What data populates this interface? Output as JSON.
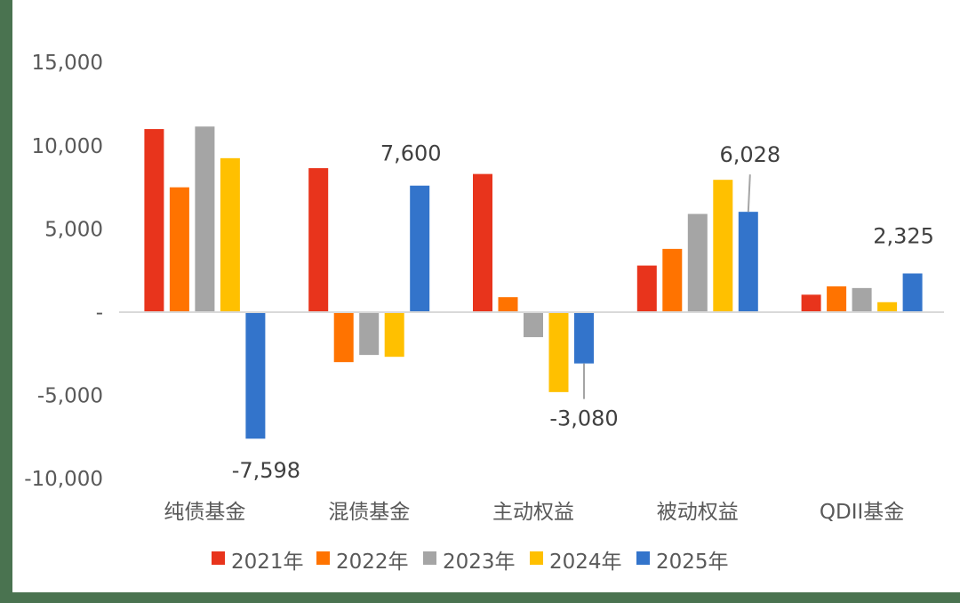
{
  "chart_data": {
    "type": "bar",
    "title": "",
    "xlabel": "",
    "ylabel": "",
    "ylim": [
      -10000,
      15000
    ],
    "yticks": [
      15000,
      10000,
      5000,
      0,
      -5000,
      -10000
    ],
    "ytick_labels": [
      "15,000",
      "10,000",
      "5,000",
      "-",
      "-5,000",
      "-10,000"
    ],
    "grid": false,
    "legend_position": "bottom",
    "categories": [
      "纯债基金",
      "混债基金",
      "主动权益",
      "被动权益",
      "QDII基金"
    ],
    "series": [
      {
        "name": "2021年",
        "color": "#e8341c",
        "values": [
          11000,
          8650,
          8300,
          2800,
          1050
        ]
      },
      {
        "name": "2022年",
        "color": "#ff7300",
        "values": [
          7500,
          -3000,
          900,
          3800,
          1550
        ]
      },
      {
        "name": "2023年",
        "color": "#a5a5a5",
        "values": [
          11150,
          -2570,
          -1500,
          5900,
          1450
        ]
      },
      {
        "name": "2024年",
        "color": "#ffc000",
        "values": [
          9250,
          -2680,
          -4800,
          7950,
          600
        ]
      },
      {
        "name": "2025年",
        "color": "#3374cb",
        "values": [
          -7598,
          7600,
          -3080,
          6028,
          2325
        ]
      }
    ],
    "annotations": [
      {
        "series": "2025年",
        "category": "纯债基金",
        "text": "-7,598"
      },
      {
        "series": "2025年",
        "category": "混债基金",
        "text": "7,600"
      },
      {
        "series": "2025年",
        "category": "主动权益",
        "text": "-3,080"
      },
      {
        "series": "2025年",
        "category": "被动权益",
        "text": "6,028"
      },
      {
        "series": "2025年",
        "category": "QDII基金",
        "text": "2,325"
      }
    ]
  },
  "colors": {
    "frame": "#4a7350",
    "axis_line": "#d9d9d9",
    "text": "#595959",
    "leader_line": "#a5a5a5"
  }
}
